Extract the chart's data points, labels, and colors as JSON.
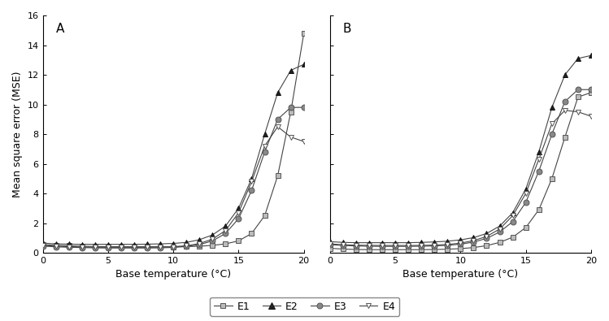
{
  "x": [
    0,
    1,
    2,
    3,
    4,
    5,
    6,
    7,
    8,
    9,
    10,
    11,
    12,
    13,
    14,
    15,
    16,
    17,
    18,
    19,
    20
  ],
  "panel_A": {
    "E1": [
      0.55,
      0.5,
      0.47,
      0.44,
      0.42,
      0.41,
      0.41,
      0.41,
      0.41,
      0.41,
      0.41,
      0.42,
      0.44,
      0.5,
      0.6,
      0.8,
      1.3,
      2.5,
      5.2,
      9.5,
      14.8
    ],
    "E2": [
      0.65,
      0.6,
      0.58,
      0.57,
      0.57,
      0.57,
      0.57,
      0.57,
      0.58,
      0.6,
      0.63,
      0.7,
      0.88,
      1.2,
      1.8,
      3.0,
      5.0,
      8.0,
      10.8,
      12.3,
      12.7
    ],
    "E3": [
      0.45,
      0.4,
      0.37,
      0.35,
      0.33,
      0.32,
      0.32,
      0.32,
      0.32,
      0.33,
      0.36,
      0.42,
      0.55,
      0.8,
      1.3,
      2.3,
      4.2,
      6.8,
      9.0,
      9.8,
      9.8
    ],
    "E4": [
      0.5,
      0.44,
      0.41,
      0.39,
      0.37,
      0.37,
      0.37,
      0.37,
      0.37,
      0.38,
      0.41,
      0.47,
      0.62,
      0.92,
      1.5,
      2.7,
      4.8,
      7.2,
      8.5,
      7.8,
      7.5
    ]
  },
  "panel_B": {
    "E1": [
      0.3,
      0.25,
      0.22,
      0.21,
      0.21,
      0.21,
      0.21,
      0.21,
      0.22,
      0.24,
      0.28,
      0.35,
      0.48,
      0.7,
      1.05,
      1.7,
      2.9,
      5.0,
      7.8,
      10.5,
      10.8
    ],
    "E2": [
      0.75,
      0.7,
      0.68,
      0.68,
      0.68,
      0.68,
      0.68,
      0.7,
      0.73,
      0.78,
      0.87,
      1.02,
      1.3,
      1.8,
      2.7,
      4.3,
      6.8,
      9.8,
      12.0,
      13.1,
      13.3
    ],
    "E3": [
      0.55,
      0.49,
      0.46,
      0.44,
      0.43,
      0.43,
      0.43,
      0.44,
      0.46,
      0.5,
      0.58,
      0.72,
      0.97,
      1.4,
      2.1,
      3.4,
      5.5,
      8.0,
      10.2,
      11.0,
      11.0
    ],
    "E4": [
      0.6,
      0.54,
      0.51,
      0.5,
      0.49,
      0.49,
      0.49,
      0.5,
      0.52,
      0.56,
      0.65,
      0.82,
      1.1,
      1.6,
      2.5,
      4.0,
      6.3,
      8.7,
      9.6,
      9.5,
      9.2
    ]
  },
  "ylim": [
    0,
    16
  ],
  "xlim": [
    0,
    20
  ],
  "ylabel": "Mean square error (MSE)",
  "xlabel": "Base temperature (°C)",
  "panel_labels": [
    "A",
    "B"
  ],
  "legend_labels": [
    "E1",
    "E2",
    "E3",
    "E4"
  ],
  "bg_color": "#ffffff",
  "yticks": [
    0,
    2,
    4,
    6,
    8,
    10,
    12,
    14,
    16
  ],
  "xticks": [
    0,
    5,
    10,
    15,
    20
  ],
  "marker_styles": [
    "s",
    "^",
    "o",
    "v"
  ],
  "marker_facecolors": [
    "#bbbbbb",
    "#222222",
    "#888888",
    "#ffffff"
  ],
  "marker_edgecolors": [
    "#555555",
    "#111111",
    "#555555",
    "#555555"
  ],
  "line_color": "#444444",
  "marker_sizes": [
    4,
    5,
    5,
    5
  ]
}
